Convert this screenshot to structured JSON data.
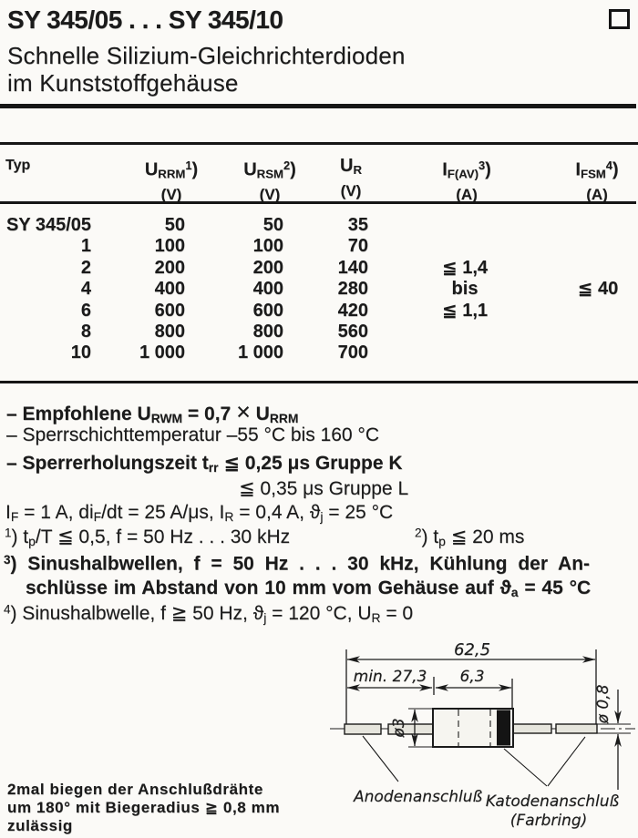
{
  "header": {
    "title": "SY 345/05 . . . SY 345/10",
    "subtitle1": "Schnelle Silizium-Gleichrichterdioden",
    "subtitle2": "im Kunststoffgehäuse"
  },
  "table": {
    "headers": [
      {
        "html": "Typ",
        "unit": ""
      },
      {
        "html": "U<sub>RRM</sub><sup>1</sup>)",
        "unit": "(V)"
      },
      {
        "html": "U<sub>RSM</sub><sup>2</sup>)",
        "unit": "(V)"
      },
      {
        "html": "U<sub>R</sub>",
        "unit": "(V)"
      },
      {
        "html": "I<sub>F(AV)</sub><sup>3</sup>)",
        "unit": "(A)"
      },
      {
        "html": "I<sub>FSM</sub><sup>4</sup>)",
        "unit": "(A)"
      }
    ],
    "rows": [
      [
        "SY 345/05",
        "50",
        "50",
        "35",
        "",
        ""
      ],
      [
        "1",
        "100",
        "100",
        "70",
        "",
        ""
      ],
      [
        "2",
        "200",
        "200",
        "140",
        "≦ 1,4",
        ""
      ],
      [
        "4",
        "400",
        "400",
        "280",
        "bis",
        "≦ 40"
      ],
      [
        "6",
        "600",
        "600",
        "420",
        "≦ 1,1",
        ""
      ],
      [
        "8",
        "800",
        "800",
        "560",
        "",
        ""
      ],
      [
        "10",
        "1 000",
        "1 000",
        "700",
        "",
        ""
      ]
    ]
  },
  "notes": [
    {
      "html": "– Empfohlene U<sub>RWM</sub> = 0,7 <span class=\"xbig\">×</span> U<sub>RRM</sub>"
    },
    {
      "html": "– Sperrschichttemperatur –55 °C bis 160 °C"
    },
    {
      "html": "– Sperrerholungszeit t<sub>rr</sub> ≦ 0,25 μs Gruppe K"
    },
    {
      "html": "≦ 0,35 μs Gruppe L"
    }
  ],
  "conditions": {
    "html": "I<sub>F</sub> = 1 A, di<sub>F</sub>/dt = 25 A/μs, I<sub>R</sub> = 0,4 A, ϑ<sub>j</sub> = 25 °C"
  },
  "footnotes": {
    "fn1": {
      "html": "<sup>1</sup>) t<sub>p</sub>/T ≦ 0,5, f = 50 Hz . . . 30 kHz"
    },
    "fn2": {
      "html": "<sup>2</sup>) t<sub>p</sub> ≦ 20 ms"
    },
    "fn3a": {
      "html": "<sup>3</sup>) Sinushalbwellen, f = 50 Hz . . . 30 kHz, Kühlung der An-"
    },
    "fn3b": {
      "html": "schlüsse im Abstand von 10 mm vom Gehäuse auf ϑ<sub>a</sub> = 45 °C"
    },
    "fn4": {
      "html": "<sup>4</sup>) Sinushalbwelle, f ≧ 50 Hz, ϑ<sub>j</sub> = 120 °C, U<sub>R</sub> = 0"
    }
  },
  "drawing": {
    "dim_total": "62,5",
    "dim_lead_min": "min. 27,3",
    "dim_body": "6,3",
    "dia_body": "ø3",
    "dia_lead": "ø 0,8",
    "label_anode": "Anodenanschluß",
    "label_cathode": "Katodenanschluß",
    "label_cathode2": "(Farbring)"
  },
  "bend_note": [
    "2mal biegen der Anschlußdrähte",
    "um 180° mit Biegeradius ≧ 0,8 mm",
    "zulässig"
  ],
  "colors": {
    "ink": "#1b1b1b",
    "paper": "#fbfaf7",
    "lead_fill": "#e6e5dd",
    "body_fill": "#f6f5f0",
    "band": "#141414"
  }
}
